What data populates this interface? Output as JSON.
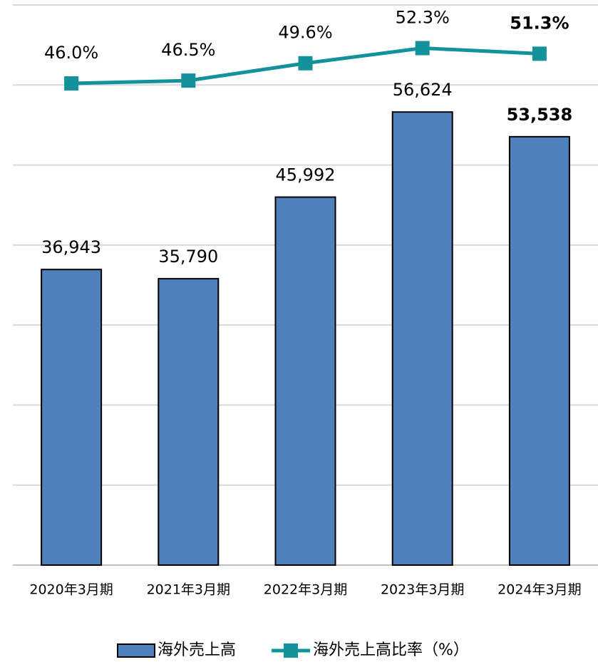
{
  "chart_data": {
    "type": "bar",
    "categories": [
      "2020年3月期",
      "2021年3月期",
      "2022年3月期",
      "2023年3月期",
      "2024年3月期"
    ],
    "series": [
      {
        "name": "海外売上高",
        "type": "bar",
        "color": "#4f81bd",
        "values": [
          36943,
          35790,
          45992,
          56624,
          53538
        ],
        "value_labels": [
          "36,943",
          "35,790",
          "45,992",
          "56,624",
          "53,538"
        ]
      },
      {
        "name": "海外売上高比率（%）",
        "type": "line",
        "axis": "y2",
        "color": "#14929b",
        "values": [
          46.0,
          46.5,
          49.6,
          52.3,
          51.3
        ],
        "value_labels": [
          "46.0%",
          "46.5%",
          "49.6%",
          "52.3%",
          "51.3%"
        ]
      }
    ],
    "ylim": [
      0,
      70000
    ],
    "yticks": [
      0,
      10000,
      20000,
      30000,
      40000,
      50000,
      60000,
      70000
    ],
    "y2lim": [
      -40,
      60
    ],
    "grid": true,
    "legend": "bottom"
  }
}
